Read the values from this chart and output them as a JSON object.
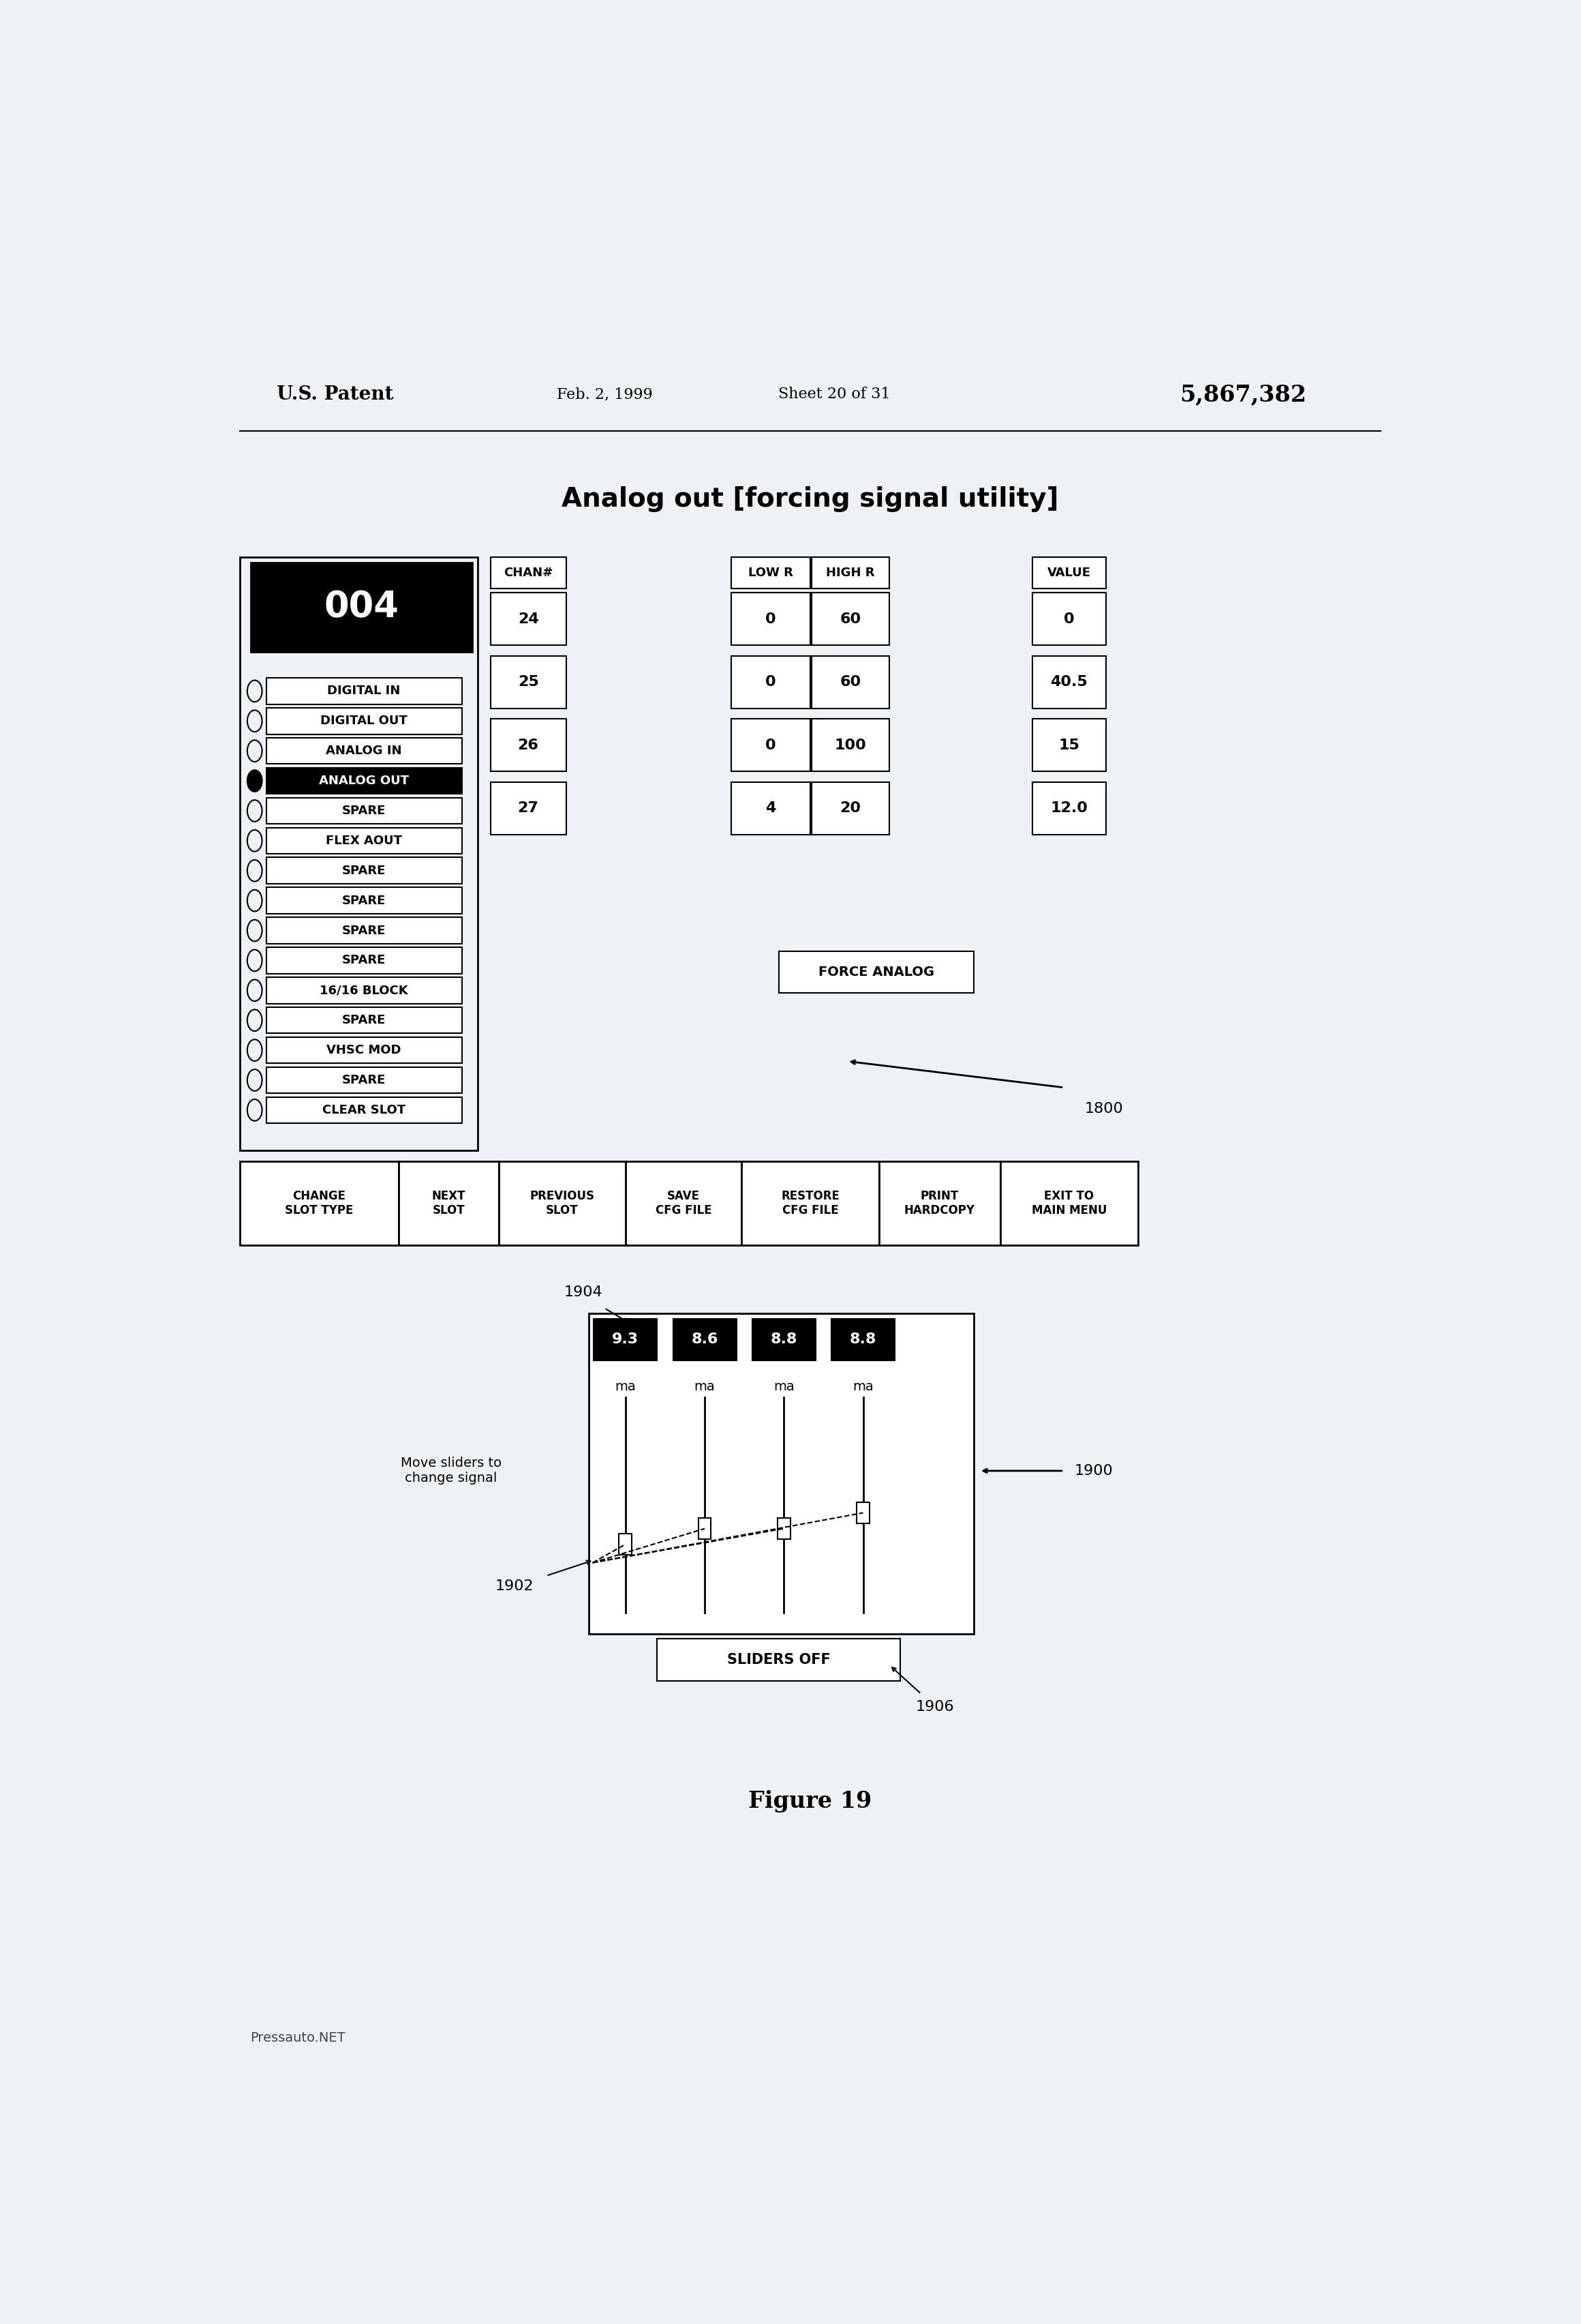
{
  "bg_color": "#eef2f4",
  "title": "Analog out [forcing signal utility]",
  "patent_left": "U.S. Patent",
  "patent_date": "Feb. 2, 1999",
  "patent_sheet": "Sheet 20 of 31",
  "patent_number": "5,867,382",
  "chan_numbers": [
    "24",
    "25",
    "26",
    "27"
  ],
  "low_r_values": [
    "0",
    "0",
    "0",
    "4"
  ],
  "high_r_values": [
    "60",
    "60",
    "100",
    "20"
  ],
  "value_values": [
    "0",
    "40.5",
    "15",
    "12.0"
  ],
  "left_panel_items": [
    {
      "text": "DIGITAL IN",
      "selected": false
    },
    {
      "text": "DIGITAL OUT",
      "selected": false
    },
    {
      "text": "ANALOG IN",
      "selected": false
    },
    {
      "text": "ANALOG OUT",
      "selected": true
    },
    {
      "text": "SPARE",
      "selected": false
    },
    {
      "text": "FLEX AOUT",
      "selected": false
    },
    {
      "text": "SPARE",
      "selected": false
    },
    {
      "text": "SPARE",
      "selected": false
    },
    {
      "text": "SPARE",
      "selected": false
    },
    {
      "text": "SPARE",
      "selected": false
    },
    {
      "text": "16/16 BLOCK",
      "selected": false
    },
    {
      "text": "SPARE",
      "selected": false
    },
    {
      "text": "VHSC MOD",
      "selected": false
    },
    {
      "text": "SPARE",
      "selected": false
    },
    {
      "text": "CLEAR SLOT",
      "selected": false
    }
  ],
  "bottom_buttons": [
    "CHANGE\nSLOT TYPE",
    "NEXT\nSLOT",
    "PREVIOUS\nSLOT",
    "SAVE\nCFG FILE",
    "RESTORE\nCFG FILE",
    "PRINT\nHARDCOPY",
    "EXIT TO\nMAIN MENU"
  ],
  "slider_values": [
    "9.3",
    "8.6",
    "8.8",
    "8.8"
  ],
  "slider_units": [
    "ma",
    "ma",
    "ma",
    "ma"
  ],
  "figure_label": "Figure 19",
  "watermark": "Pressauto.NET"
}
